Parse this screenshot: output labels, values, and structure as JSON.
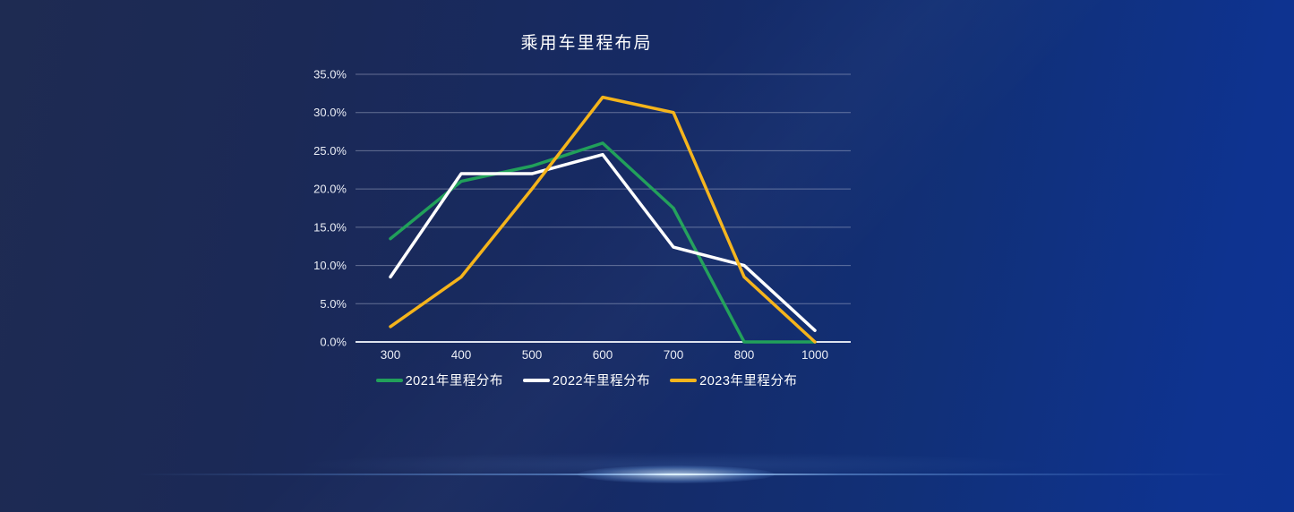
{
  "page": {
    "title": "乘用车里程布局"
  },
  "colors": {
    "background_top_left": "#1E2B52",
    "background_right": "#0D3393",
    "grid_line": "rgba(205,210,228,0.42)",
    "axis_line": "rgba(232,236,245,0.95)",
    "tick_text": "#EAEDF5",
    "title_text": "#FFFFFF",
    "divider_glow": "#BFE0FF"
  },
  "chart_data": {
    "type": "line",
    "title": "乘用车里程布局",
    "categories": [
      "300",
      "400",
      "500",
      "600",
      "700",
      "800",
      "1000"
    ],
    "series": [
      {
        "name": "2021年里程分布",
        "color": "#21A05A",
        "values": [
          13.5,
          21,
          23,
          26,
          17.5,
          0,
          0
        ]
      },
      {
        "name": "2022年里程分布",
        "color": "#FFFFFF",
        "values": [
          8.5,
          22,
          22,
          24.5,
          12.4,
          10,
          1.5
        ]
      },
      {
        "name": "2023年里程分布",
        "color": "#F5B41B",
        "values": [
          2,
          8.5,
          20,
          32,
          30,
          8.5,
          0
        ]
      }
    ],
    "y_ticks": [
      "35.0%",
      "30.0%",
      "25.0%",
      "20.0%",
      "15.0%",
      "10.0%",
      "5.0%",
      "0.0%"
    ],
    "ylim": [
      0,
      35
    ],
    "y_tick_step": 5,
    "xlabel": "",
    "ylabel": "",
    "grid": true,
    "legend_position": "bottom"
  }
}
